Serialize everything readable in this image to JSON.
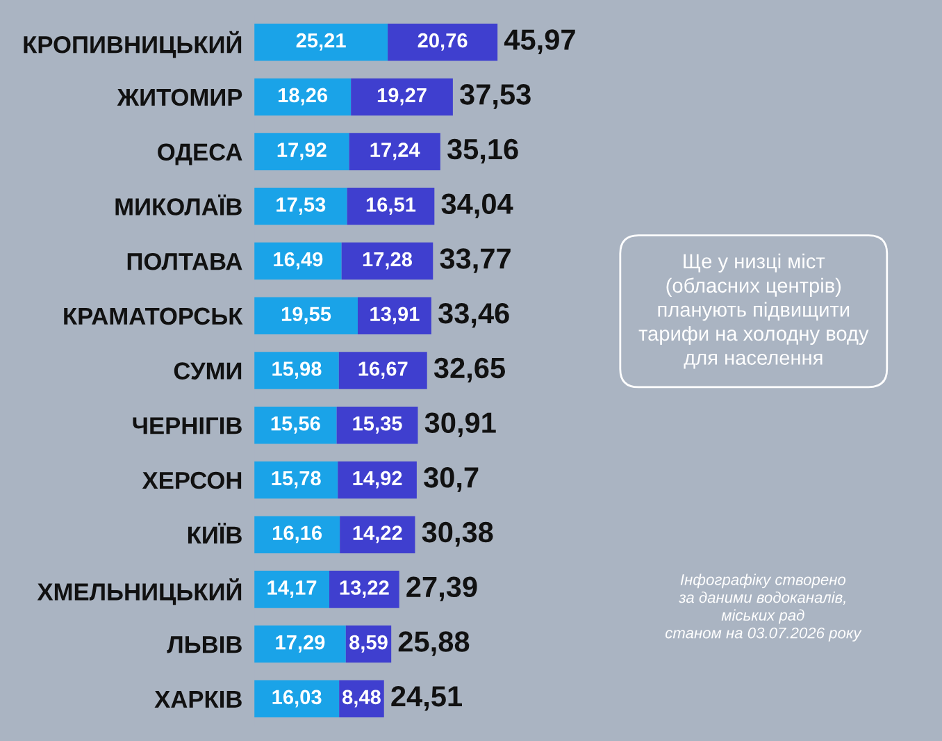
{
  "chart_data": {
    "type": "bar",
    "orientation": "horizontal",
    "stacked": true,
    "categories": [
      "КРОПИВНИЦЬКИЙ",
      "ЖИТОМИР",
      "ОДЕСА",
      "МИКОЛАЇВ",
      "ПОЛТАВА",
      "КРАМАТОРСЬК",
      "СУМИ",
      "ЧЕРНІГІВ",
      "ХЕРСОН",
      "КИЇВ",
      "ХМЕЛЬНИЦЬКИЙ",
      "ЛЬВІВ",
      "ХАРКІВ"
    ],
    "series": [
      {
        "color": "#1aa3e8",
        "values": [
          25.21,
          18.26,
          17.92,
          17.53,
          16.49,
          19.55,
          15.98,
          15.56,
          15.78,
          16.16,
          14.17,
          17.29,
          16.03
        ],
        "value_labels": [
          "25,21",
          "18,26",
          "17,92",
          "17,53",
          "16,49",
          "19,55",
          "15,98",
          "15,56",
          "15,78",
          "16,16",
          "14,17",
          "17,29",
          "16,03"
        ]
      },
      {
        "color": "#3f3fcf",
        "values": [
          20.76,
          19.27,
          17.24,
          16.51,
          17.28,
          13.91,
          16.67,
          15.35,
          14.92,
          14.22,
          13.22,
          8.59,
          8.48
        ],
        "value_labels": [
          "20,76",
          "19,27",
          "17,24",
          "16,51",
          "17,28",
          "13,91",
          "16,67",
          "15,35",
          "14,92",
          "14,22",
          "13,22",
          "8,59",
          "8,48"
        ]
      }
    ],
    "totals": [
      "45,97",
      "37,53",
      "35,16",
      "34,04",
      "33,77",
      "33,46",
      "32,65",
      "30,91",
      "30,7",
      "30,38",
      "27,39",
      "25,88",
      "24,51"
    ],
    "xlim": [
      0,
      130
    ],
    "tick_labels": "y",
    "grid": false,
    "annotations": [
      "Ще у низці міст\n(обласних центрів)\nпланують підвищити\nтарифи на холодну воду\nдля населення",
      "Інфографіку створено\nза даними водоканалів,\nміських рад\nстаном на 03.07.2026 року"
    ]
  }
}
